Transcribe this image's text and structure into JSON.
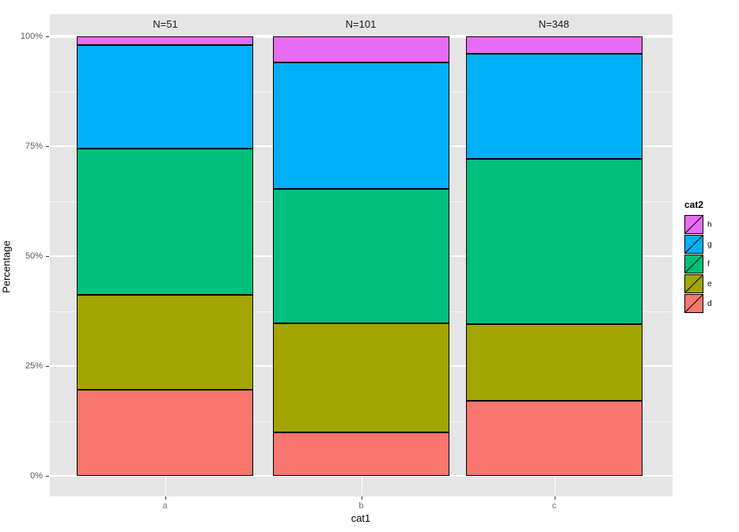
{
  "chart_data": {
    "type": "bar",
    "stacked": true,
    "normalized": "percent",
    "facet_labels": [
      "N=51",
      "N=101",
      "N=348"
    ],
    "categories": [
      "a",
      "b",
      "c"
    ],
    "series": [
      {
        "name": "d",
        "color": "#F8766D",
        "values": [
          19.6,
          9.9,
          17.0
        ]
      },
      {
        "name": "e",
        "color": "#A3A500",
        "values": [
          21.6,
          24.8,
          17.5
        ]
      },
      {
        "name": "f",
        "color": "#00BF7D",
        "values": [
          33.3,
          30.6,
          37.6
        ]
      },
      {
        "name": "g",
        "color": "#00B0F6",
        "values": [
          23.5,
          28.8,
          23.9
        ]
      },
      {
        "name": "h",
        "color": "#E76BF3",
        "values": [
          2.0,
          5.9,
          4.0
        ]
      }
    ],
    "xlabel": "cat1",
    "ylabel": "Percentage",
    "ylim": [
      0,
      100
    ],
    "y_tick_labels": [
      "0%",
      "25%",
      "50%",
      "75%",
      "100%"
    ],
    "y_major": [
      0,
      25,
      50,
      75,
      100
    ],
    "y_minor": [
      12.5,
      37.5,
      62.5,
      87.5
    ],
    "legend_title": "cat2",
    "legend_order": [
      "h",
      "g",
      "f",
      "e",
      "d"
    ],
    "legend_position": "right",
    "grid": "white major and minor horizontal lines on gray panel",
    "theme": {
      "panel_background": "#E5E5E5",
      "strip_background": "#E5E5E5",
      "gridline_color": "#FFFFFF",
      "bar_outline": "#000000",
      "axis_text_color": "#595959",
      "title_text_color": "#000000"
    }
  }
}
